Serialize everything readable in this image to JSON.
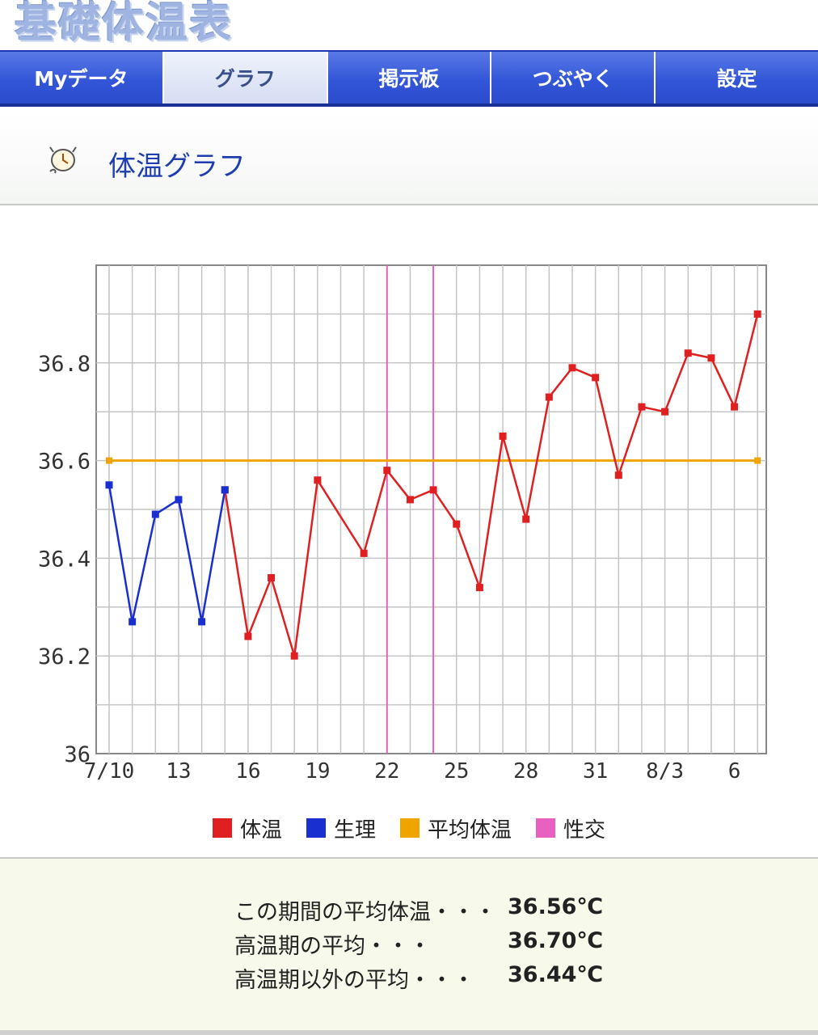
{
  "app": {
    "title": "基礎体温表"
  },
  "tabs": [
    {
      "label": "Myデータ",
      "active": false
    },
    {
      "label": "グラフ",
      "active": true
    },
    {
      "label": "掲示板",
      "active": false
    },
    {
      "label": "つぶやく",
      "active": false
    },
    {
      "label": "設定",
      "active": false
    }
  ],
  "section": {
    "title": "体温グラフ",
    "icon": "clock-icon"
  },
  "colors": {
    "temperature": "#e02020",
    "menstruation": "#1a2fd0",
    "average": "#f0a400",
    "intercourse": "#e860c0",
    "tab_blue": "#2c4fd6"
  },
  "chart_data": {
    "type": "line",
    "title": "",
    "xlabel": "",
    "ylabel": "",
    "ylim": [
      36.0,
      37.0
    ],
    "yticks": [
      "36",
      "36.2",
      "36.4",
      "36.6",
      "36.8"
    ],
    "x_dates": [
      "7/10",
      "7/11",
      "7/12",
      "7/13",
      "7/14",
      "7/15",
      "7/16",
      "7/17",
      "7/18",
      "7/19",
      "7/20",
      "7/21",
      "7/22",
      "7/23",
      "7/24",
      "7/25",
      "7/26",
      "7/27",
      "7/28",
      "7/29",
      "7/30",
      "7/31",
      "8/1",
      "8/2",
      "8/3",
      "8/4",
      "8/5",
      "8/6",
      "8/7"
    ],
    "xtick_labels": [
      "7/10",
      "13",
      "16",
      "19",
      "22",
      "25",
      "28",
      "31",
      "8/3",
      "6"
    ],
    "grid": true,
    "legend_position": "bottom",
    "legend": [
      "体温",
      "生理",
      "平均体温",
      "性交"
    ],
    "series": [
      {
        "name": "生理",
        "color_key": "menstruation",
        "points": [
          {
            "date": "7/10",
            "value": 36.55
          },
          {
            "date": "7/11",
            "value": 36.27
          },
          {
            "date": "7/12",
            "value": 36.49
          },
          {
            "date": "7/13",
            "value": 36.52
          },
          {
            "date": "7/14",
            "value": 36.27
          },
          {
            "date": "7/15",
            "value": 36.54
          }
        ]
      },
      {
        "name": "体温",
        "color_key": "temperature",
        "points": [
          {
            "date": "7/15",
            "value": 36.54
          },
          {
            "date": "7/16",
            "value": 36.24
          },
          {
            "date": "7/17",
            "value": 36.36
          },
          {
            "date": "7/18",
            "value": 36.2
          },
          {
            "date": "7/19",
            "value": 36.56
          },
          {
            "date": "7/21",
            "value": 36.41
          },
          {
            "date": "7/22",
            "value": 36.58
          },
          {
            "date": "7/23",
            "value": 36.52
          },
          {
            "date": "7/24",
            "value": 36.54
          },
          {
            "date": "7/25",
            "value": 36.47
          },
          {
            "date": "7/26",
            "value": 36.34
          },
          {
            "date": "7/27",
            "value": 36.65
          },
          {
            "date": "7/28",
            "value": 36.48
          },
          {
            "date": "7/29",
            "value": 36.73
          },
          {
            "date": "7/30",
            "value": 36.79
          },
          {
            "date": "7/31",
            "value": 36.77
          },
          {
            "date": "8/1",
            "value": 36.57
          },
          {
            "date": "8/2",
            "value": 36.71
          },
          {
            "date": "8/3",
            "value": 36.7
          },
          {
            "date": "8/4",
            "value": 36.82
          },
          {
            "date": "8/5",
            "value": 36.81
          },
          {
            "date": "8/6",
            "value": 36.71
          },
          {
            "date": "8/7",
            "value": 36.9
          }
        ]
      },
      {
        "name": "平均体温",
        "color_key": "average",
        "constant": 36.6
      },
      {
        "name": "性交",
        "color_key": "intercourse",
        "dates": [
          "7/22",
          "7/24"
        ]
      }
    ]
  },
  "summary": [
    {
      "label": "この期間の平均体温・・・",
      "value": "36.56℃"
    },
    {
      "label": "高温期の平均・・・",
      "value": "36.70℃"
    },
    {
      "label": "高温期以外の平均・・・",
      "value": "36.44℃"
    }
  ]
}
